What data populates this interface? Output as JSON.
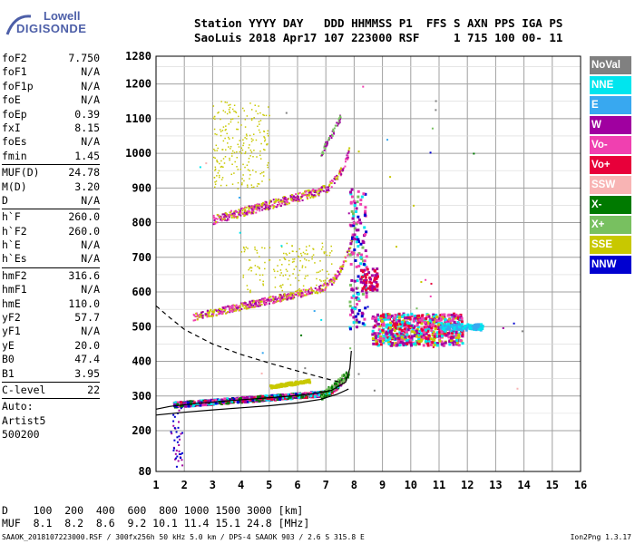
{
  "logo": {
    "line1": "Lowell",
    "line2": "DIGISONDE"
  },
  "header": {
    "line1": "Station YYYY DAY   DDD HHMMSS P1  FFS S AXN PPS IGA PS",
    "line2": "SaoLuis 2018 Apr17 107 223000 RSF     1 715 100 00- 11"
  },
  "params": {
    "group1": [
      {
        "name": "foF2",
        "value": "7.750"
      },
      {
        "name": "foF1",
        "value": "N/A"
      },
      {
        "name": "foF1p",
        "value": "N/A"
      },
      {
        "name": "foE",
        "value": "N/A"
      },
      {
        "name": "foEp",
        "value": "0.39"
      },
      {
        "name": "fxI",
        "value": "8.15"
      },
      {
        "name": "foEs",
        "value": "N/A"
      },
      {
        "name": "fmin",
        "value": "1.45"
      }
    ],
    "group2": [
      {
        "name": "MUF(D)",
        "value": "24.78"
      },
      {
        "name": "M(D)",
        "value": "3.20"
      },
      {
        "name": "D",
        "value": "N/A"
      }
    ],
    "group3": [
      {
        "name": "h`F",
        "value": "260.0"
      },
      {
        "name": "h`F2",
        "value": "260.0"
      },
      {
        "name": "h`E",
        "value": "N/A"
      },
      {
        "name": "h`Es",
        "value": "N/A"
      }
    ],
    "group4": [
      {
        "name": "hmF2",
        "value": "316.6"
      },
      {
        "name": "hmF1",
        "value": "N/A"
      },
      {
        "name": "hmE",
        "value": "110.0"
      },
      {
        "name": "yF2",
        "value": "57.7"
      },
      {
        "name": "yF1",
        "value": "N/A"
      },
      {
        "name": "yE",
        "value": "20.0"
      },
      {
        "name": "B0",
        "value": "47.4"
      },
      {
        "name": "B1",
        "value": "3.95"
      }
    ],
    "group5": [
      {
        "name": "C-level",
        "value": "22"
      }
    ],
    "auto": {
      "line1": "Auto:",
      "line2": "Artist5",
      "line3": "500200"
    }
  },
  "legend": [
    {
      "label": "NoVal",
      "color": "#808080"
    },
    {
      "label": "NNE",
      "color": "#00e5ee"
    },
    {
      "label": "E",
      "color": "#38a8f0"
    },
    {
      "label": "W",
      "color": "#a000a0"
    },
    {
      "label": "Vo-",
      "color": "#f040b0"
    },
    {
      "label": "Vo+",
      "color": "#e8003a"
    },
    {
      "label": "SSW",
      "color": "#f8b4b4"
    },
    {
      "label": "X-",
      "color": "#007a00"
    },
    {
      "label": "X+",
      "color": "#78c060"
    },
    {
      "label": "SSE",
      "color": "#c8c800"
    },
    {
      "label": "NNW",
      "color": "#0000d0"
    }
  ],
  "chart_data": {
    "type": "scatter",
    "xlim": [
      1,
      16
    ],
    "ylim": [
      80,
      1280
    ],
    "x_ticks": [
      "1",
      "2",
      "3",
      "4",
      "5",
      "6",
      "7",
      "8",
      "9",
      "10",
      "11",
      "12",
      "13",
      "14",
      "15",
      "16"
    ],
    "y_ticks": [
      "80",
      "200",
      "300",
      "400",
      "500",
      "600",
      "700",
      "800",
      "900",
      "1000",
      "1100",
      "1200",
      "1280"
    ],
    "grid": true,
    "traces": [
      {
        "name": "profile",
        "style": "solid",
        "points": [
          [
            1.0,
            262
          ],
          [
            1.5,
            270
          ],
          [
            2.5,
            279
          ],
          [
            3.5,
            286
          ],
          [
            4.5,
            292
          ],
          [
            5.5,
            298
          ],
          [
            6.5,
            306
          ],
          [
            7.2,
            316
          ],
          [
            7.7,
            340
          ],
          [
            7.85,
            380
          ],
          [
            7.9,
            430
          ]
        ]
      },
      {
        "name": "profile-lower",
        "style": "solid",
        "points": [
          [
            1.0,
            245
          ],
          [
            2,
            253
          ],
          [
            3,
            260
          ],
          [
            4,
            266
          ],
          [
            5,
            272
          ],
          [
            6,
            280
          ],
          [
            6.8,
            290
          ],
          [
            7.4,
            305
          ],
          [
            7.8,
            320
          ]
        ]
      },
      {
        "name": "E-bound",
        "style": "dashed",
        "points": [
          [
            1.0,
            560
          ],
          [
            1.5,
            525
          ],
          [
            2.0,
            492
          ],
          [
            3.0,
            450
          ],
          [
            4.0,
            420
          ],
          [
            5.0,
            395
          ],
          [
            6.0,
            372
          ],
          [
            7.0,
            350
          ],
          [
            7.6,
            338
          ]
        ]
      }
    ]
  },
  "bottom": {
    "d_row": "D    100  200  400  600  800 1000 1500 3000 [km]",
    "muf_row": "MUF  8.1  8.2  8.6  9.2 10.1 11.4 15.1 24.8 [MHz]"
  },
  "footer": {
    "left": "SAAOK_2018107223000.RSF / 300fx256h 50 kHz 5.0 km / DPS-4 SAAOK 903 / 2.6 S 315.8 E",
    "right": "Ion2Png 1.3.17"
  }
}
